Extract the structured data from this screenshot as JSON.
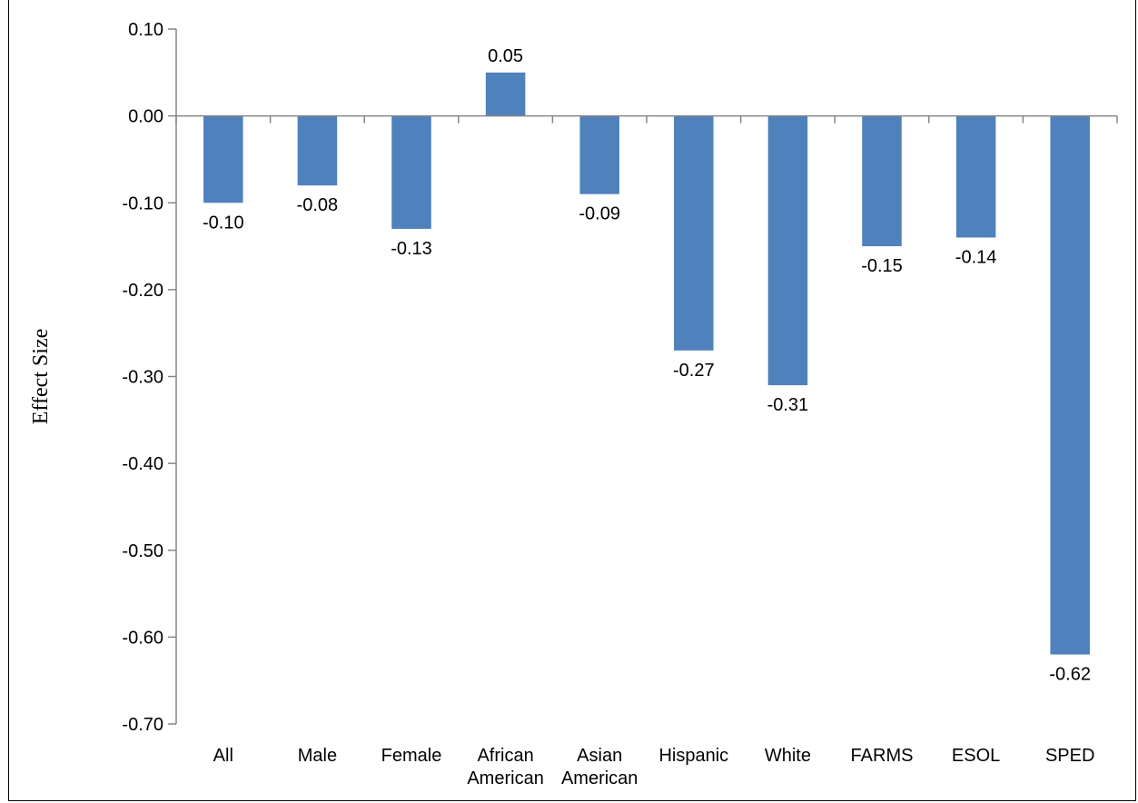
{
  "chart_data": {
    "type": "bar",
    "title": "",
    "xlabel": "",
    "ylabel": "Effect Size",
    "ylim": [
      -0.7,
      0.1
    ],
    "yticks": [
      "0.10",
      "0.00",
      "-0.10",
      "-0.20",
      "-0.30",
      "-0.40",
      "-0.50",
      "-0.60",
      "-0.70"
    ],
    "categories": [
      [
        "All"
      ],
      [
        "Male"
      ],
      [
        "Female"
      ],
      [
        "African",
        "American"
      ],
      [
        "Asian",
        "American"
      ],
      [
        "Hispanic"
      ],
      [
        "White"
      ],
      [
        "FARMS"
      ],
      [
        "ESOL"
      ],
      [
        "SPED"
      ]
    ],
    "values": [
      -0.1,
      -0.08,
      -0.13,
      0.05,
      -0.09,
      -0.27,
      -0.31,
      -0.15,
      -0.14,
      -0.62
    ],
    "data_labels": [
      "-0.10",
      "-0.08",
      "-0.13",
      "0.05",
      "-0.09",
      "-0.27",
      "-0.31",
      "-0.15",
      "-0.14",
      "-0.62"
    ],
    "bar_color": "#4f81bd",
    "grid": false,
    "legend": "none"
  }
}
